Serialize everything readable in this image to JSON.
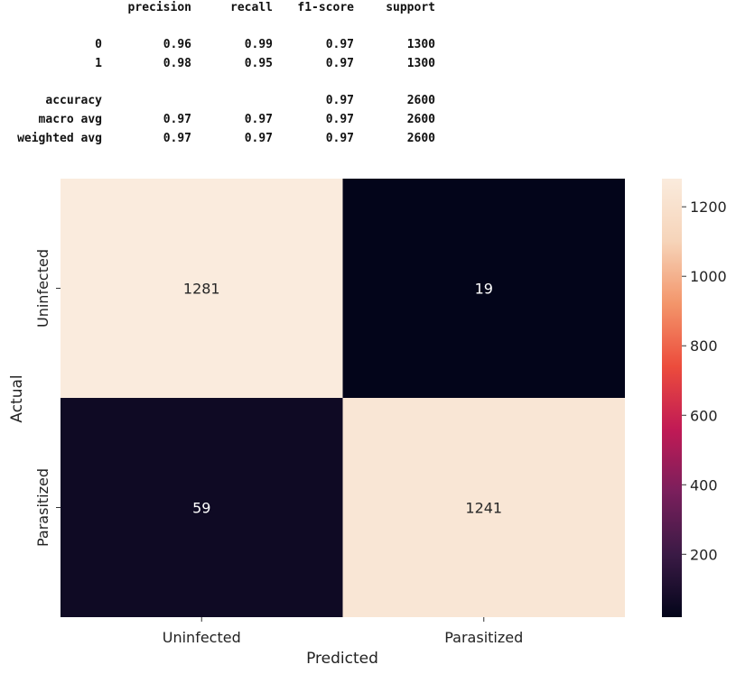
{
  "report": {
    "headers": [
      "precision",
      "recall",
      "f1-score",
      "support"
    ],
    "rows": [
      {
        "label": "0",
        "precision": "0.96",
        "recall": "0.99",
        "f1": "0.97",
        "support": "1300"
      },
      {
        "label": "1",
        "precision": "0.98",
        "recall": "0.95",
        "f1": "0.97",
        "support": "1300"
      },
      {
        "label": "accuracy",
        "precision": "",
        "recall": "",
        "f1": "0.97",
        "support": "2600"
      },
      {
        "label": "macro avg",
        "precision": "0.97",
        "recall": "0.97",
        "f1": "0.97",
        "support": "2600"
      },
      {
        "label": "weighted avg",
        "precision": "0.97",
        "recall": "0.97",
        "f1": "0.97",
        "support": "2600"
      }
    ]
  },
  "chart_data": {
    "type": "heatmap",
    "title": "",
    "xlabel": "Predicted",
    "ylabel": "Actual",
    "x_categories": [
      "Uninfected",
      "Parasitized"
    ],
    "y_categories": [
      "Uninfected",
      "Parasitized"
    ],
    "values": [
      [
        1281,
        19
      ],
      [
        59,
        1241
      ]
    ],
    "colorbar": {
      "min": 19,
      "max": 1281,
      "ticks": [
        200,
        400,
        600,
        800,
        1000,
        1200
      ],
      "colormap": "rocket",
      "colors": [
        "#03051a",
        "#3a1a45",
        "#7a1f5c",
        "#c11a55",
        "#ec4c3c",
        "#f3956a",
        "#f6d4b9",
        "#faebdd"
      ]
    }
  }
}
